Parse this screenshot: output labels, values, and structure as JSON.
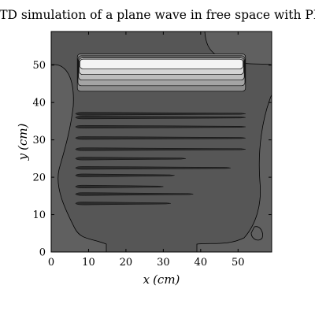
{
  "chart_data": {
    "type": "heatmap",
    "title": "FDTD simulation of a plane wave in free space with PML",
    "xlabel_var": "x",
    "xlabel_unit": "(cm)",
    "ylabel_var": "y",
    "ylabel_unit": "(cm)",
    "xlim": [
      0,
      59
    ],
    "ylim": [
      0,
      59
    ],
    "xticks": [
      0,
      10,
      20,
      30,
      40,
      50
    ],
    "yticks": [
      0,
      10,
      20,
      30,
      40,
      50
    ],
    "grid": false,
    "colormap": "gray",
    "colors": {
      "background_field": "#565656",
      "outer_region": "#606060",
      "dark_band": "#2c2c2c",
      "contour_line": "#000000"
    },
    "source_bright_band": {
      "x_range": [
        7,
        52
      ],
      "y_range": [
        43,
        53
      ],
      "levels": [
        {
          "y_from": 43.0,
          "y_to": 53.0,
          "color": "#8c8c8c"
        },
        {
          "y_from": 44.5,
          "y_to": 52.5,
          "color": "#a4a4a4"
        },
        {
          "y_from": 46.0,
          "y_to": 52.2,
          "color": "#bcbcbc"
        },
        {
          "y_from": 47.5,
          "y_to": 51.9,
          "color": "#d4d4d4"
        },
        {
          "y_from": 49.0,
          "y_to": 51.6,
          "color": "#f4f4f4"
        }
      ]
    },
    "wave_streaks": [
      {
        "y": 37.0,
        "x_from": 6.5,
        "x_to": 52
      },
      {
        "y": 36.0,
        "x_from": 6.5,
        "x_to": 52
      },
      {
        "y": 33.5,
        "x_from": 6.5,
        "x_to": 52
      },
      {
        "y": 30.5,
        "x_from": 6.5,
        "x_to": 52
      },
      {
        "y": 27.5,
        "x_from": 6.5,
        "x_to": 52
      },
      {
        "y": 25.0,
        "x_from": 6.5,
        "x_to": 36
      },
      {
        "y": 22.5,
        "x_from": 6.5,
        "x_to": 48
      },
      {
        "y": 20.5,
        "x_from": 6.5,
        "x_to": 33
      },
      {
        "y": 17.5,
        "x_from": 6.5,
        "x_to": 30
      },
      {
        "y": 15.5,
        "x_from": 6.5,
        "x_to": 38
      },
      {
        "y": 13.0,
        "x_from": 6.5,
        "x_to": 32
      }
    ]
  }
}
